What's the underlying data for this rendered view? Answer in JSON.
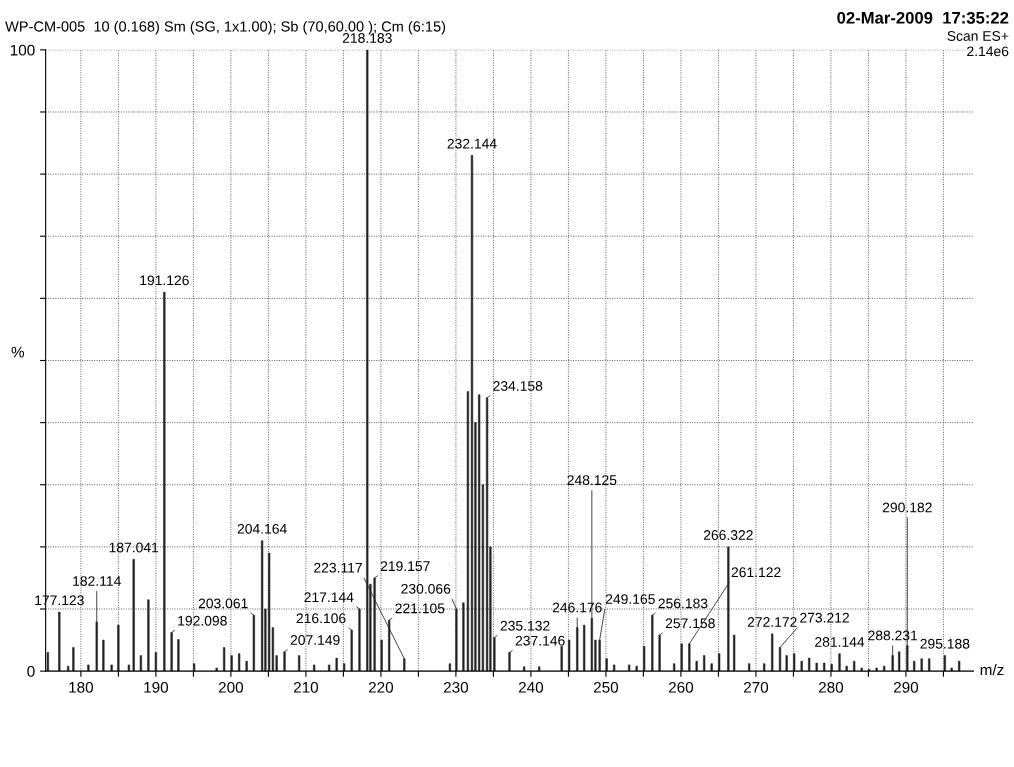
{
  "chart_data": {
    "type": "bar",
    "title": "WP-CM-005  10 (0.168) Sm (SG, 1x1.00); Sb (70,60.00 ); Cm (6:15)",
    "xlabel": "m/z",
    "ylabel": "%",
    "annotations": [
      "02-Mar-2009  17:35:22",
      "Scan ES+",
      "2.14e6",
      {
        "text": "177.123",
        "x": 177.123,
        "y": 9.5
      },
      {
        "text": "182.114",
        "x": 182.114,
        "y": 7.9
      },
      {
        "text": "187.041",
        "x": 187.041,
        "y": 18
      },
      {
        "text": "191.126",
        "x": 191.126,
        "y": 61
      },
      {
        "text": "192.098",
        "x": 192.098,
        "y": 6.2
      },
      {
        "text": "203.061",
        "x": 203.061,
        "y": 9
      },
      {
        "text": "204.164",
        "x": 204.164,
        "y": 21
      },
      {
        "text": "207.149",
        "x": 207.149,
        "y": 3.1
      },
      {
        "text": "216.106",
        "x": 216.106,
        "y": 6.6
      },
      {
        "text": "217.144",
        "x": 217.144,
        "y": 10
      },
      {
        "text": "218.183",
        "x": 218.183,
        "y": 100
      },
      {
        "text": "219.157",
        "x": 219.157,
        "y": 15
      },
      {
        "text": "221.105",
        "x": 221.105,
        "y": 8.2
      },
      {
        "text": "223.117",
        "x": 223.117,
        "y": 2
      },
      {
        "text": "230.066",
        "x": 230.066,
        "y": 10
      },
      {
        "text": "232.144",
        "x": 232.144,
        "y": 83
      },
      {
        "text": "234.158",
        "x": 234.158,
        "y": 44
      },
      {
        "text": "235.132",
        "x": 235.132,
        "y": 5.4
      },
      {
        "text": "237.146",
        "x": 237.146,
        "y": 3
      },
      {
        "text": "246.176",
        "x": 246.176,
        "y": 7
      },
      {
        "text": "248.125",
        "x": 248.125,
        "y": 8.5
      },
      {
        "text": "249.165",
        "x": 249.165,
        "y": 5
      },
      {
        "text": "256.183",
        "x": 256.183,
        "y": 9
      },
      {
        "text": "257.158",
        "x": 257.158,
        "y": 5.8
      },
      {
        "text": "261.122",
        "x": 261.122,
        "y": 4.4
      },
      {
        "text": "266.322",
        "x": 266.322,
        "y": 20
      },
      {
        "text": "272.172",
        "x": 272.172,
        "y": 6
      },
      {
        "text": "273.212",
        "x": 273.212,
        "y": 3.8
      },
      {
        "text": "281.144",
        "x": 281.144,
        "y": 2.8
      },
      {
        "text": "288.231",
        "x": 288.231,
        "y": 2.5
      },
      {
        "text": "290.182",
        "x": 290.182,
        "y": 4.1
      },
      {
        "text": "295.188",
        "x": 295.188,
        "y": 2.5
      }
    ],
    "x": [
      175.6,
      177.123,
      178.3,
      179.0,
      181.0,
      182.114,
      183.0,
      184.1,
      185.0,
      186.4,
      187.041,
      188.0,
      189.0,
      190.0,
      191.126,
      192.098,
      193.0,
      195.1,
      198.1,
      199.1,
      200.1,
      201.1,
      202.1,
      203.061,
      204.164,
      204.6,
      205.1,
      205.6,
      206.1,
      207.149,
      209.1,
      211.1,
      213.1,
      214.1,
      215.1,
      216.106,
      217.144,
      218.183,
      218.6,
      219.157,
      220.1,
      221.105,
      223.117,
      229.2,
      230.066,
      231.0,
      231.6,
      232.144,
      232.6,
      233.1,
      233.6,
      234.158,
      234.6,
      235.132,
      237.146,
      239.1,
      241.1,
      244.1,
      245.1,
      246.176,
      247.1,
      248.125,
      248.6,
      249.165,
      250.1,
      251.1,
      253.1,
      254.1,
      255.1,
      256.183,
      257.158,
      259.1,
      260.1,
      261.122,
      262.1,
      263.1,
      264.1,
      265.1,
      266.322,
      267.1,
      269.1,
      271.1,
      272.172,
      273.212,
      274.1,
      275.1,
      276.1,
      277.1,
      278.1,
      279.1,
      280.1,
      281.144,
      282.1,
      283.1,
      284.1,
      285.1,
      286.1,
      287.1,
      288.231,
      289.1,
      290.182,
      291.1,
      292.1,
      293.1,
      295.188,
      296.1,
      297.1
    ],
    "values": [
      3,
      9.5,
      0.8,
      3.8,
      1,
      7.9,
      5,
      1,
      7.4,
      1,
      18,
      2.5,
      11.5,
      3,
      61,
      6.2,
      5.1,
      1.2,
      0.5,
      3.8,
      2.5,
      2.8,
      1.6,
      9,
      21,
      10,
      19,
      7,
      2.5,
      3.1,
      2.5,
      1,
      1,
      2.1,
      1.2,
      6.6,
      10,
      100,
      14,
      15,
      5,
      8.2,
      2,
      1.2,
      10,
      11,
      45,
      83,
      40,
      44.5,
      30,
      44,
      20,
      5.4,
      3,
      0.7,
      0.7,
      4,
      5,
      7,
      7.4,
      8.5,
      5,
      5,
      2,
      1,
      1,
      0.8,
      4,
      9,
      5.8,
      1.2,
      4.4,
      4.4,
      1.6,
      2.5,
      1.2,
      2.8,
      20,
      5.8,
      1.2,
      1.2,
      6,
      3.8,
      2.5,
      2.8,
      1.6,
      2.1,
      1.3,
      1.3,
      1.1,
      2.8,
      0.8,
      1.6,
      0.5,
      0.3,
      0.5,
      0.8,
      2.5,
      3.1,
      4.1,
      1.6,
      2,
      2,
      2.5,
      0.5,
      1.6
    ],
    "color": "#222222",
    "xlim": [
      175.3,
      299
    ],
    "xticks": [
      180,
      {
        "value": 185,
        "label": null
      },
      190,
      {
        "value": 195,
        "label": null
      },
      200,
      {
        "value": 205,
        "label": null
      },
      210,
      {
        "value": 215,
        "label": null
      },
      220,
      {
        "value": 225,
        "label": null
      },
      230,
      {
        "value": 235,
        "label": null
      },
      240,
      {
        "value": 245,
        "label": null
      },
      250,
      {
        "value": 255,
        "label": null
      },
      260,
      {
        "value": 265,
        "label": null
      },
      270,
      {
        "value": 275,
        "label": null
      },
      280,
      {
        "value": 285,
        "label": null
      },
      290,
      {
        "value": 295,
        "label": null
      }
    ],
    "ylim": [
      0,
      100
    ],
    "yticks": [
      0,
      {
        "value": 10,
        "label": null
      },
      {
        "value": 20,
        "label": null
      },
      {
        "value": 30,
        "label": null
      },
      {
        "value": 40,
        "label": null
      },
      {
        "value": 50,
        "label": null
      },
      {
        "value": 60,
        "label": null
      },
      {
        "value": 70,
        "label": null
      },
      {
        "value": 80,
        "label": null
      },
      {
        "value": 90,
        "label": null
      },
      100
    ],
    "grid": true
  }
}
